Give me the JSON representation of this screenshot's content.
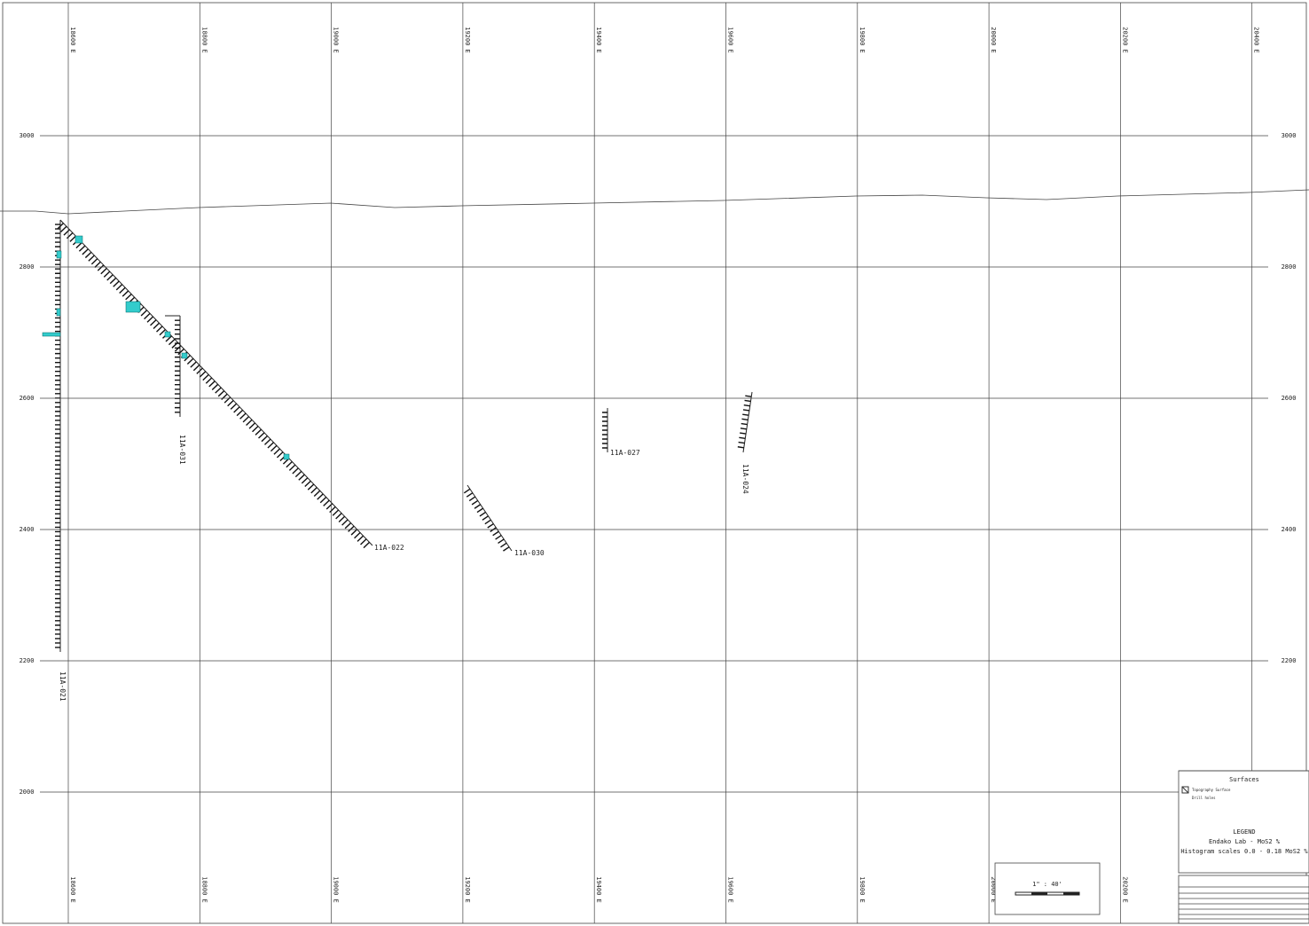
{
  "grid": {
    "eastings": [
      "18600 E",
      "18800 E",
      "19000 E",
      "19200 E",
      "19400 E",
      "19600 E",
      "19800 E",
      "20000 E",
      "20200 E",
      "20400 E"
    ],
    "elevations": [
      "3000",
      "2800",
      "2600",
      "2400",
      "2200",
      "2000"
    ]
  },
  "holes": [
    {
      "label": "11A-021"
    },
    {
      "label": "11A-022"
    },
    {
      "label": "11A-031"
    },
    {
      "label": "11A-030"
    },
    {
      "label": "11A-027"
    },
    {
      "label": "11A-024"
    }
  ],
  "legend": {
    "heading": "Surfaces",
    "items": [
      "Topography Surface",
      "Drill holes"
    ],
    "title": "LEGEND",
    "line1": "Endako Lab - MoS2 %",
    "line2": "Histogram scales 0.0 - 0.18 MoS2 %"
  },
  "scale": "1\" : 40'"
}
